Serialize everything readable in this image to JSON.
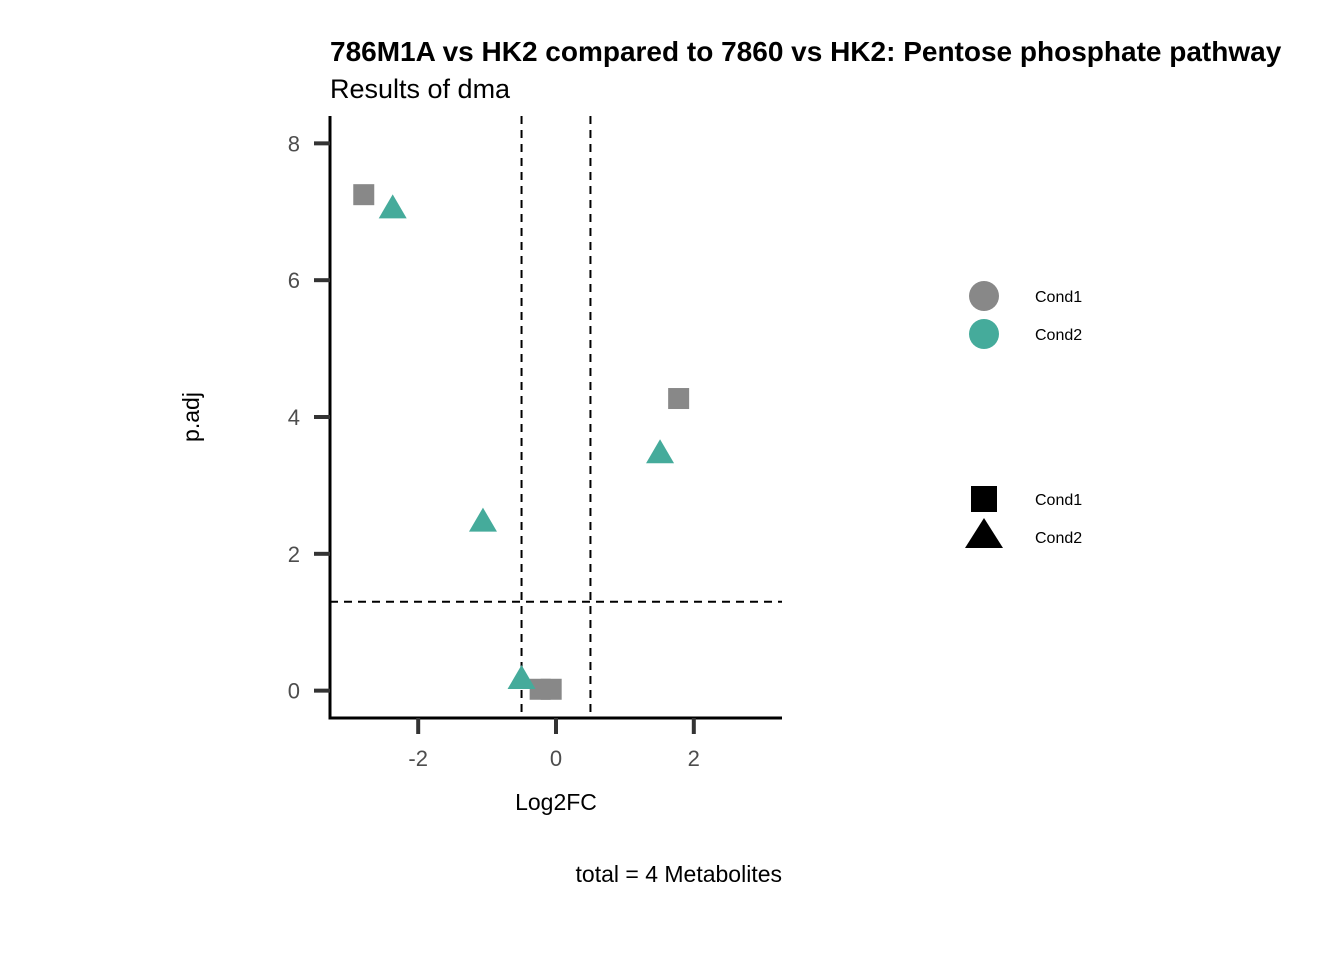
{
  "chart_data": {
    "type": "scatter",
    "title": "786M1A vs HK2 compared to 7860 vs HK2: Pentose phosphate pathway",
    "subtitle": "Results of dma",
    "xlabel": "Log2FC",
    "ylabel": "p.adj",
    "caption": "total = 4 Metabolites",
    "xlim": [
      -3.28,
      3.28
    ],
    "ylim": [
      -0.4,
      8.4
    ],
    "xticks": [
      -2,
      0,
      2
    ],
    "xtick_labels": [
      "-2",
      "0",
      "2"
    ],
    "yticks": [
      0,
      2,
      4,
      6,
      8
    ],
    "ytick_labels": [
      "0",
      "2",
      "4",
      "6",
      "8"
    ],
    "threshold_lines": {
      "x": [
        -0.5,
        0.5
      ],
      "y": [
        1.3
      ]
    },
    "series": [
      {
        "name": "Cond1",
        "shape": "square",
        "color": "#888888",
        "points": [
          {
            "x": -2.79,
            "y": 7.25
          },
          {
            "x": 1.78,
            "y": 4.27
          },
          {
            "x": -0.23,
            "y": 0.02
          },
          {
            "x": -0.07,
            "y": 0.02
          }
        ]
      },
      {
        "name": "Cond2",
        "shape": "triangle",
        "color": "#45ab9b",
        "points": [
          {
            "x": -2.37,
            "y": 7.05
          },
          {
            "x": -1.06,
            "y": 2.47
          },
          {
            "x": 1.51,
            "y": 3.47
          },
          {
            "x": -0.5,
            "y": 0.17
          }
        ]
      }
    ],
    "legend_colour": {
      "placement": "right",
      "entries": [
        {
          "label": "Cond1",
          "color": "#888888"
        },
        {
          "label": "Cond2",
          "color": "#45ab9b"
        }
      ]
    },
    "legend_shape": {
      "placement": "right",
      "entries": [
        {
          "label": "Cond1",
          "shape": "square"
        },
        {
          "label": "Cond2",
          "shape": "triangle"
        }
      ]
    }
  }
}
